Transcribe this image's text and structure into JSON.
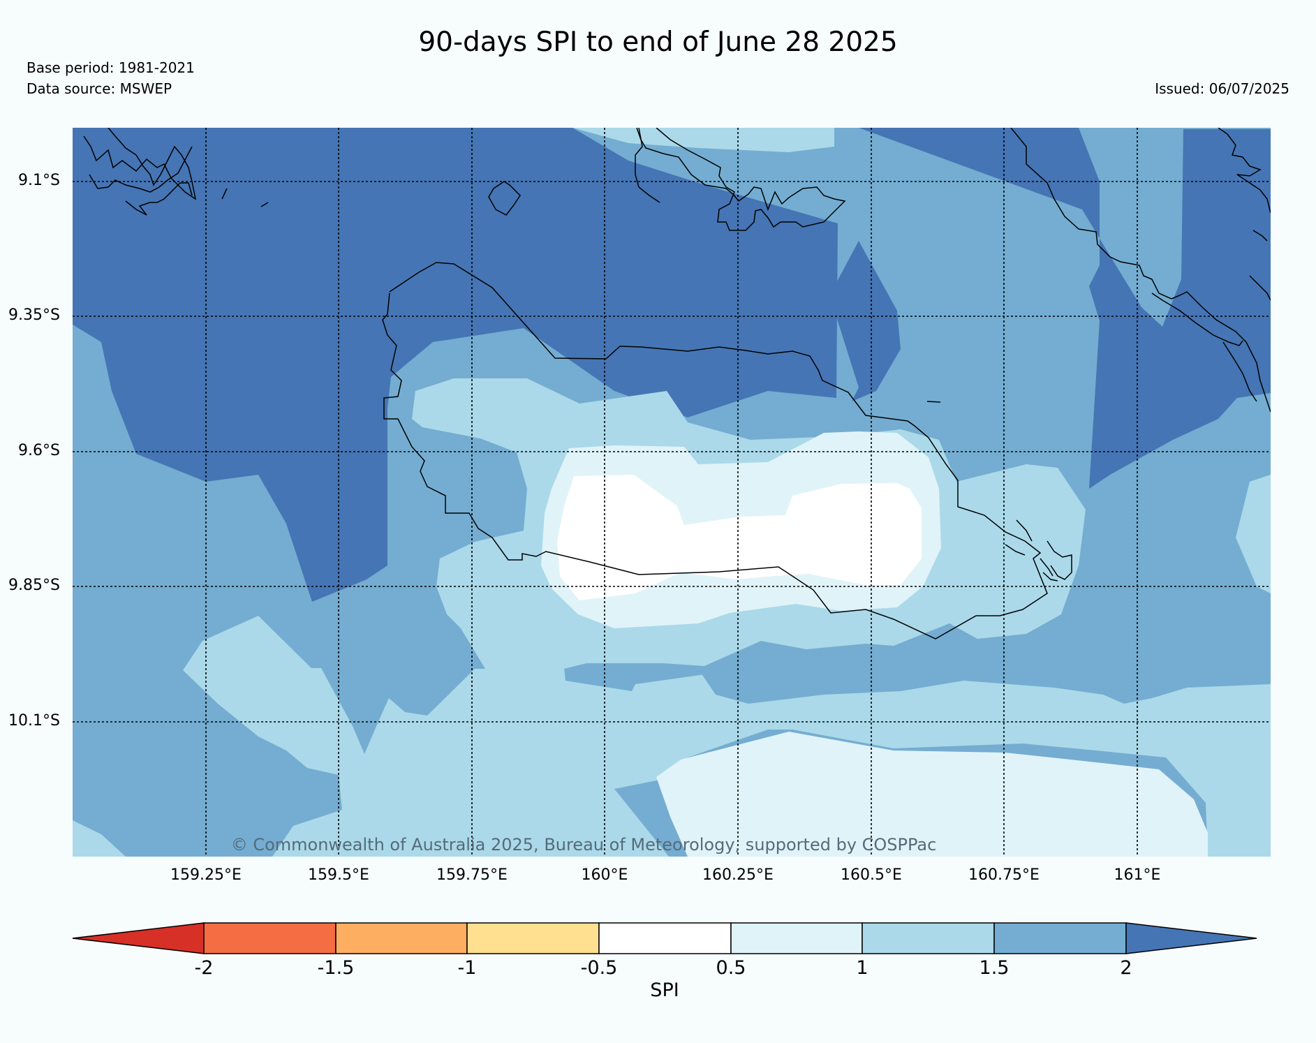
{
  "title": "90-days SPI to end of June 28 2025",
  "base_period": "Base period: 1981-2021",
  "data_source": "Data source: MSWEP",
  "issued": "Issued: 06/07/2025",
  "copyright": "© Commonwealth of Australia 2025, Bureau of Meteorology, supported by COSPPac",
  "lat_labels": [
    "9.1°S",
    "9.35°S",
    "9.6°S",
    "9.85°S",
    "10.1°S"
  ],
  "lon_labels": [
    "159.25°E",
    "159.5°E",
    "159.75°E",
    "160°E",
    "160.25°E",
    "160.5°E",
    "160.75°E",
    "161°E"
  ],
  "colorbar": {
    "label": "SPI",
    "ticks": [
      "-2",
      "-1.5",
      "-1",
      "-0.5",
      "0.5",
      "1",
      "1.5",
      "2"
    ],
    "colors": [
      "#d73027",
      "#f46d43",
      "#fdae61",
      "#fee090",
      "#ffffff",
      "#e0f3f8",
      "#abd9e9",
      "#74add1",
      "#4575b4"
    ]
  },
  "colors": {
    "spi_gt_2": "#4575b4",
    "spi_1_5_to_2": "#74add1",
    "spi_1_to_1_5": "#abd9e9",
    "spi_0_5_to_1": "#e0f3f8",
    "spi_near_normal": "#ffffff"
  }
}
